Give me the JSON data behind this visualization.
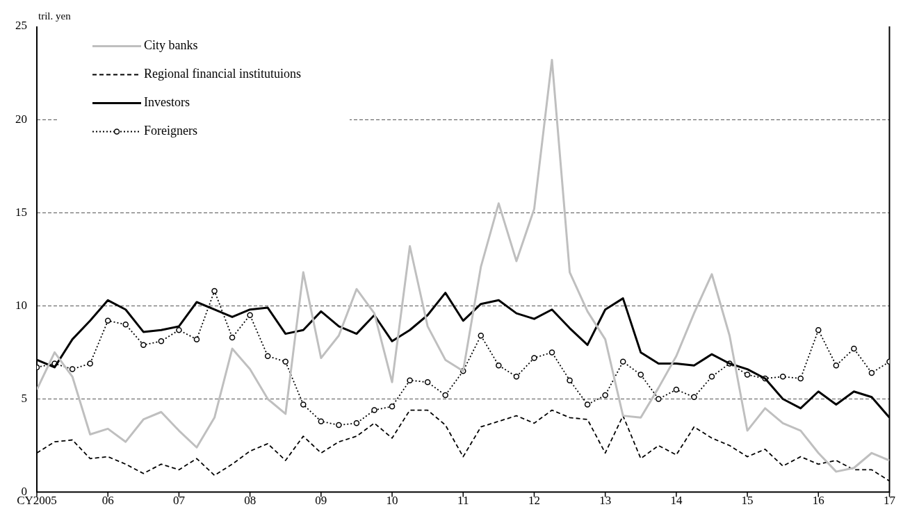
{
  "chart_data": {
    "type": "line",
    "ylabel": "tril. yen",
    "x": [
      2005,
      2005.25,
      2005.5,
      2005.75,
      2006,
      2006.25,
      2006.5,
      2006.75,
      2007,
      2007.25,
      2007.5,
      2007.75,
      2008,
      2008.25,
      2008.5,
      2008.75,
      2009,
      2009.25,
      2009.5,
      2009.75,
      2010,
      2010.25,
      2010.5,
      2010.75,
      2011,
      2011.25,
      2011.5,
      2011.75,
      2012,
      2012.25,
      2012.5,
      2012.75,
      2013,
      2013.25,
      2013.5,
      2013.75,
      2014,
      2014.25,
      2014.5,
      2014.75,
      2015,
      2015.25,
      2015.5,
      2015.75,
      2016,
      2016.25,
      2016.5,
      2016.75,
      2017
    ],
    "series": [
      {
        "name": "City banks",
        "color": "#bfbfbf",
        "line_style": "solid",
        "marker": "none",
        "values": [
          5.5,
          7.5,
          6.2,
          3.1,
          3.4,
          2.7,
          3.9,
          4.3,
          3.3,
          2.4,
          4.0,
          7.7,
          6.6,
          5.0,
          4.2,
          11.8,
          7.2,
          8.4,
          10.9,
          9.6,
          5.9,
          13.2,
          8.9,
          7.1,
          6.5,
          12.1,
          15.5,
          12.4,
          15.2,
          23.2,
          11.8,
          9.7,
          8.2,
          4.1,
          4.0,
          5.6,
          7.3,
          9.6,
          11.7,
          8.4,
          3.3,
          4.5,
          3.7,
          3.3,
          2.1,
          1.1,
          1.3,
          2.1,
          1.7
        ]
      },
      {
        "name": "Regional financial institutuions",
        "color": "#000000",
        "line_style": "dashed",
        "marker": "none",
        "values": [
          2.1,
          2.7,
          2.8,
          1.8,
          1.9,
          1.5,
          1.0,
          1.5,
          1.2,
          1.8,
          0.9,
          1.5,
          2.2,
          2.6,
          1.7,
          3.0,
          2.1,
          2.7,
          3.0,
          3.7,
          2.9,
          4.4,
          4.4,
          3.6,
          1.9,
          3.5,
          3.8,
          4.1,
          3.7,
          4.4,
          4.0,
          3.9,
          2.1,
          4.1,
          1.8,
          2.5,
          2.0,
          3.5,
          2.9,
          2.5,
          1.9,
          2.3,
          1.4,
          1.9,
          1.5,
          1.7,
          1.2,
          1.2,
          0.6
        ]
      },
      {
        "name": "Investors",
        "color": "#000000",
        "line_style": "solid",
        "marker": "none",
        "values": [
          7.1,
          6.7,
          8.2,
          9.2,
          10.3,
          9.8,
          8.6,
          8.7,
          8.9,
          10.2,
          9.8,
          9.4,
          9.8,
          9.9,
          8.5,
          8.7,
          9.7,
          8.9,
          8.5,
          9.5,
          8.1,
          8.7,
          9.5,
          10.7,
          9.2,
          10.1,
          10.3,
          9.6,
          9.3,
          9.8,
          8.8,
          7.9,
          9.8,
          10.4,
          7.5,
          6.9,
          6.9,
          6.8,
          7.4,
          6.9,
          6.6,
          6.1,
          5.0,
          4.5,
          5.4,
          4.7,
          5.4,
          5.1,
          4.0
        ]
      },
      {
        "name": "Foreigners",
        "color": "#000000",
        "line_style": "dotted",
        "marker": "circle",
        "values": [
          6.7,
          6.9,
          6.6,
          6.9,
          9.2,
          9.0,
          7.9,
          8.1,
          8.7,
          8.2,
          10.8,
          8.3,
          9.5,
          7.3,
          7.0,
          4.7,
          3.8,
          3.6,
          3.7,
          4.4,
          4.6,
          6.0,
          5.9,
          5.2,
          6.5,
          8.4,
          6.8,
          6.2,
          7.2,
          7.5,
          6.0,
          4.7,
          5.2,
          7.0,
          6.3,
          5.0,
          5.5,
          5.1,
          6.2,
          6.9,
          6.3,
          6.1,
          6.2,
          6.1,
          8.7,
          6.8,
          7.7,
          6.4,
          7.0
        ]
      }
    ],
    "xlim": [
      2005,
      2017
    ],
    "xticks": [
      {
        "value": 2005,
        "label": "CY2005"
      },
      {
        "value": 2006,
        "label": "06"
      },
      {
        "value": 2007,
        "label": "07"
      },
      {
        "value": 2008,
        "label": "08"
      },
      {
        "value": 2009,
        "label": "09"
      },
      {
        "value": 2010,
        "label": "10"
      },
      {
        "value": 2011,
        "label": "11"
      },
      {
        "value": 2012,
        "label": "12"
      },
      {
        "value": 2013,
        "label": "13"
      },
      {
        "value": 2014,
        "label": "14"
      },
      {
        "value": 2015,
        "label": "15"
      },
      {
        "value": 2016,
        "label": "16"
      },
      {
        "value": 2017,
        "label": "17"
      }
    ],
    "ylim": [
      0,
      25
    ],
    "yticks": [
      0,
      5,
      10,
      15,
      20,
      25
    ],
    "grid": "y",
    "legend": "top left"
  }
}
